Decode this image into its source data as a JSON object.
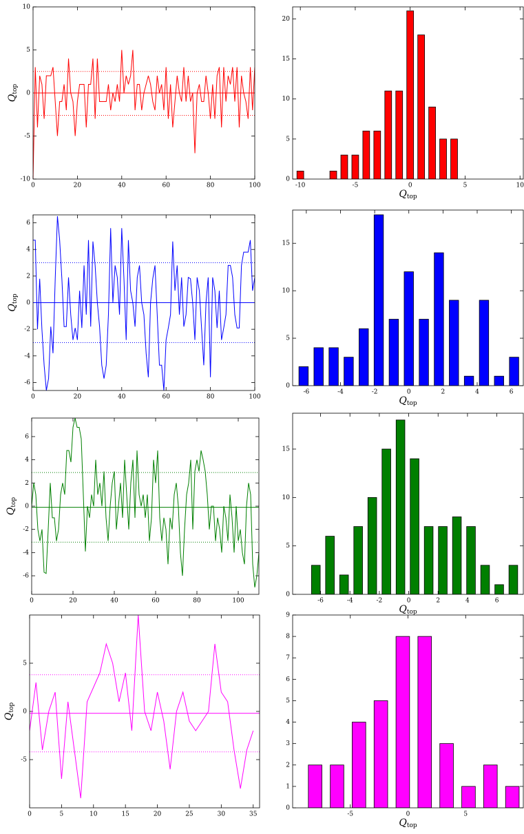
{
  "chart_data": [
    {
      "type": "line",
      "color": "#ff0000",
      "ylabel": "Q",
      "ylabel_sub": "top",
      "values": [
        -10,
        3,
        -4,
        2,
        1,
        -3,
        2,
        2,
        2,
        3,
        -1,
        -5,
        -1,
        -1,
        1,
        -2,
        4,
        0,
        -1,
        -5,
        -1,
        1,
        1,
        1,
        -4,
        1,
        1,
        4,
        -3,
        4,
        -1,
        -1,
        -1,
        -1,
        1,
        -2,
        0,
        -1,
        1,
        -1,
        5,
        0,
        2,
        1,
        2,
        5,
        -2,
        1,
        1,
        -2,
        0,
        1,
        2,
        1,
        -1,
        -2,
        2,
        0,
        1,
        -2,
        3,
        -3,
        1,
        -4,
        -1,
        2,
        0,
        -1,
        3,
        -1,
        2,
        -1,
        0,
        -7,
        0,
        1,
        -1,
        -1,
        2,
        0,
        -3,
        1,
        -3,
        2,
        3,
        -4,
        3,
        -1,
        2,
        1,
        3,
        -1,
        3,
        -4,
        2,
        0,
        -1,
        -3,
        3,
        -2,
        3
      ],
      "hlines": [
        {
          "value": 0,
          "style": "solid"
        },
        {
          "value": 2.5,
          "style": "dotted"
        },
        {
          "value": -2.6,
          "style": "dotted"
        }
      ],
      "xlim": [
        0,
        100
      ],
      "xticks": [
        0,
        20,
        40,
        60,
        80,
        100
      ],
      "ylim": [
        -10,
        10
      ],
      "yticks": [
        -10,
        -5,
        0,
        5,
        10
      ]
    },
    {
      "type": "histogram",
      "color": "#ff0000",
      "xlabel": "Q",
      "xlabel_sub": "top",
      "bins": [
        -10.5,
        -9.5,
        -8.5,
        -7.5,
        -6.5,
        -5.5,
        -4.5,
        -3.5,
        -2.5,
        -1.5,
        -0.5,
        0.5,
        1.5,
        2.5,
        3.5,
        4.5
      ],
      "values": [
        1,
        0,
        0,
        1,
        3,
        3,
        6,
        6,
        11,
        11,
        21,
        18,
        9,
        5,
        5
      ],
      "xlim": [
        -10.7,
        10.3
      ],
      "xticks": [
        -10,
        -5,
        0,
        5,
        10
      ],
      "ylim": [
        0,
        21.5
      ],
      "yticks": [
        0,
        5,
        10,
        15,
        20
      ]
    },
    {
      "type": "line",
      "color": "#0000ff",
      "ylabel": "Q",
      "ylabel_sub": "top",
      "values": [
        4.7,
        4.7,
        -2,
        1.8,
        -2,
        -4.7,
        -6.6,
        -5.7,
        -1.8,
        -3.8,
        1.8,
        6.5,
        4.7,
        1.8,
        -1.8,
        -1.8,
        1.9,
        -0.9,
        -2.8,
        -1.9,
        -2.8,
        0.9,
        -1.9,
        2.8,
        -0.9,
        4.7,
        -1.8,
        4.6,
        2.8,
        0,
        -1.8,
        -4.7,
        -5.7,
        -4.7,
        -0.9,
        5.6,
        0,
        2.8,
        1.9,
        -0.9,
        5.6,
        1.8,
        -2.8,
        4.7,
        0.9,
        0,
        -1.8,
        1.9,
        2.8,
        0,
        -0.9,
        -3.8,
        -5.6,
        0,
        1.8,
        2.8,
        -0.9,
        -4.7,
        -4.7,
        -6.6,
        -2.8,
        -1.9,
        -0.9,
        4.6,
        0.9,
        2.8,
        -0.9,
        1.9,
        -1.8,
        -0.9,
        1.9,
        1.8,
        0,
        -2.8,
        1.9,
        0.9,
        -1.9,
        -4.7,
        0,
        1.9,
        -5.6,
        1.9,
        0.9,
        -1.9,
        0.9,
        -2.8,
        -1.9,
        -0.9,
        2.8,
        2.8,
        1.9,
        -0.9,
        -1.9,
        -1.9,
        2.8,
        3.8,
        3.8,
        3.8,
        4.7,
        0.9,
        1.9
      ],
      "hlines": [
        {
          "value": 0,
          "style": "solid"
        },
        {
          "value": 3,
          "style": "dotted"
        },
        {
          "value": -3,
          "style": "dotted"
        }
      ],
      "xlim": [
        0,
        100
      ],
      "xticks": [
        0,
        20,
        40,
        60,
        80,
        100
      ],
      "ylim": [
        -6.6,
        6.6
      ],
      "yticks": [
        -6,
        -4,
        -2,
        0,
        2,
        4,
        6
      ]
    },
    {
      "type": "histogram",
      "color": "#0000ff",
      "xlabel": "Q",
      "xlabel_sub": "top",
      "bins": [
        -6.6,
        -5.72,
        -4.84,
        -3.96,
        -3.08,
        -2.2,
        -1.32,
        -0.44,
        0.44,
        1.32,
        2.2,
        3.08,
        3.96,
        4.84,
        5.72,
        6.6
      ],
      "values": [
        2,
        4,
        4,
        3,
        6,
        18,
        7,
        12,
        7,
        14,
        9,
        1,
        9,
        1,
        3
      ],
      "xlim": [
        -6.8,
        6.7
      ],
      "xticks": [
        -6,
        -4,
        -2,
        0,
        2,
        4,
        6
      ],
      "ylim": [
        0,
        18.5
      ],
      "yticks": [
        0,
        5,
        10,
        15
      ]
    },
    {
      "type": "line",
      "color": "#007f00",
      "ylabel": "Q",
      "ylabel_sub": "top",
      "values": [
        0,
        2,
        1,
        -2,
        -3,
        -2,
        -5.7,
        -5.8,
        -2,
        2,
        -1,
        -1,
        -3,
        -2,
        1,
        2,
        1,
        4.8,
        4.8,
        3.8,
        6.8,
        7.6,
        6.8,
        6.8,
        5.8,
        1,
        -3.9,
        0,
        -1,
        1,
        0,
        4,
        1,
        2,
        0,
        3,
        -1,
        -3,
        0,
        2,
        3,
        -2,
        0,
        2,
        -1,
        4,
        1,
        -2,
        2,
        4,
        -1,
        4.8,
        1,
        0,
        1,
        -1,
        1,
        -3,
        -1,
        4,
        2,
        4.8,
        -1,
        -3,
        -1,
        -2,
        -5,
        -1,
        -2,
        1,
        2,
        0,
        -4,
        -6,
        -2,
        1,
        2,
        4,
        -2,
        3,
        4,
        3,
        4.8,
        4,
        3,
        1,
        -2,
        0,
        0,
        -3,
        -1,
        -2,
        -4,
        0,
        -1,
        -3,
        1,
        -1,
        -4,
        0,
        -3,
        -2,
        -4,
        -5,
        0,
        2,
        1,
        -5,
        -7,
        -6,
        -4
      ],
      "hlines": [
        {
          "value": -0.1,
          "style": "solid"
        },
        {
          "value": 2.9,
          "style": "dotted"
        },
        {
          "value": -3.1,
          "style": "dotted"
        }
      ],
      "xlim": [
        0,
        110
      ],
      "xticks": [
        0,
        20,
        40,
        60,
        80,
        100
      ],
      "ylim": [
        -7.6,
        7.6
      ],
      "yticks": [
        -6,
        -4,
        -2,
        0,
        2,
        4,
        6
      ]
    },
    {
      "type": "histogram",
      "color": "#007f00",
      "xlabel": "Q",
      "xlabel_sub": "top",
      "bins": [
        -6.8,
        -5.84,
        -4.88,
        -3.92,
        -2.96,
        -2.0,
        -1.04,
        -0.08,
        0.88,
        1.84,
        2.8,
        3.76,
        4.72,
        5.68,
        6.64,
        7.6
      ],
      "values": [
        3,
        6,
        2,
        7,
        10,
        15,
        18,
        14,
        7,
        7,
        8,
        7,
        3,
        1,
        3
      ],
      "xlim": [
        -7.9,
        7.8
      ],
      "xticks": [
        -6,
        -4,
        -2,
        0,
        2,
        4,
        6
      ],
      "ylim": [
        0,
        18.7
      ],
      "yticks": [
        0,
        5,
        10,
        15
      ]
    },
    {
      "type": "line",
      "color": "#ff00ff",
      "ylabel": "Q",
      "ylabel_sub": "top",
      "values": [
        -2,
        3,
        -4,
        0,
        2,
        -7,
        1,
        -4,
        -9,
        1,
        2.5,
        4,
        7,
        5,
        1,
        4,
        -2,
        10,
        0,
        -2,
        2,
        -1,
        -6,
        0,
        2,
        -1,
        -2,
        -1,
        0,
        7,
        2,
        1,
        -4,
        -8,
        -4,
        -2
      ],
      "hlines": [
        {
          "value": -0.2,
          "style": "solid"
        },
        {
          "value": 3.8,
          "style": "dotted"
        },
        {
          "value": -4.2,
          "style": "dotted"
        }
      ],
      "xlim": [
        0,
        36
      ],
      "xticks": [
        0,
        5,
        10,
        15,
        20,
        25,
        30,
        35
      ],
      "ylim": [
        -10,
        10
      ],
      "yticks": [
        -5,
        0,
        5
      ]
    },
    {
      "type": "histogram",
      "color": "#ff00ff",
      "xlabel": "Q",
      "xlabel_sub": "top",
      "bins": [
        -9,
        -7.1,
        -5.2,
        -3.3,
        -1.4,
        0.5,
        2.4,
        4.3,
        6.2,
        8.1,
        10
      ],
      "values": [
        2,
        2,
        4,
        5,
        8,
        8,
        3,
        1,
        2,
        1
      ],
      "xlim": [
        -10,
        10
      ],
      "xticks": [
        -5,
        0,
        5
      ],
      "ylim": [
        0,
        9
      ],
      "yticks": [
        0,
        1,
        2,
        3,
        4,
        5,
        6,
        7,
        8,
        9
      ]
    }
  ]
}
